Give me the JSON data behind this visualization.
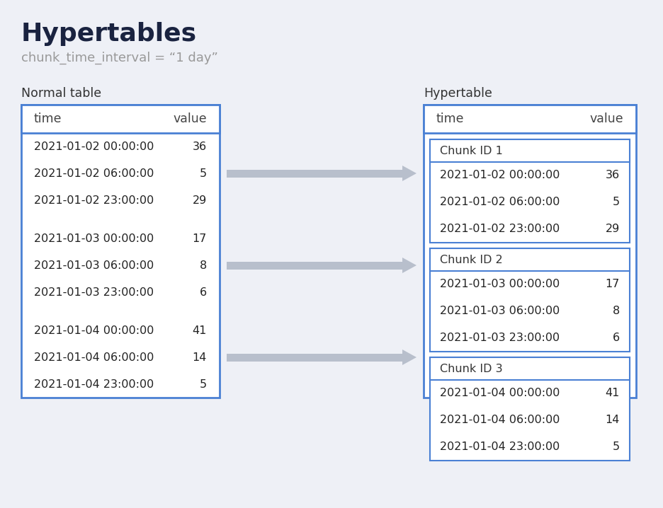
{
  "bg_color": "#eef0f6",
  "title": "Hypertables",
  "subtitle": "chunk_time_interval = “1 day”",
  "title_color": "#1a2340",
  "subtitle_color": "#999999",
  "normal_table_label": "Normal table",
  "hypertable_label": "Hypertable",
  "label_color": "#333333",
  "border_color": "#4a80d4",
  "header_bg": "#ffffff",
  "row_bg_odd": "#e8edf8",
  "row_bg_even": "#f5f7fd",
  "sep_bg": "#ffffff",
  "arrow_color": "#b8bfcc",
  "col_time": "time",
  "col_value": "value",
  "chunks": [
    {
      "id": "Chunk ID 1",
      "rows": [
        {
          "time": "2021-01-02 00:00:00",
          "value": "36"
        },
        {
          "time": "2021-01-02 06:00:00",
          "value": "5"
        },
        {
          "time": "2021-01-02 23:00:00",
          "value": "29"
        }
      ]
    },
    {
      "id": "Chunk ID 2",
      "rows": [
        {
          "time": "2021-01-03 00:00:00",
          "value": "17"
        },
        {
          "time": "2021-01-03 06:00:00",
          "value": "8"
        },
        {
          "time": "2021-01-03 23:00:00",
          "value": "6"
        }
      ]
    },
    {
      "id": "Chunk ID 3",
      "rows": [
        {
          "time": "2021-01-04 00:00:00",
          "value": "41"
        },
        {
          "time": "2021-01-04 06:00:00",
          "value": "14"
        },
        {
          "time": "2021-01-04 23:00:00",
          "value": "5"
        }
      ]
    }
  ]
}
